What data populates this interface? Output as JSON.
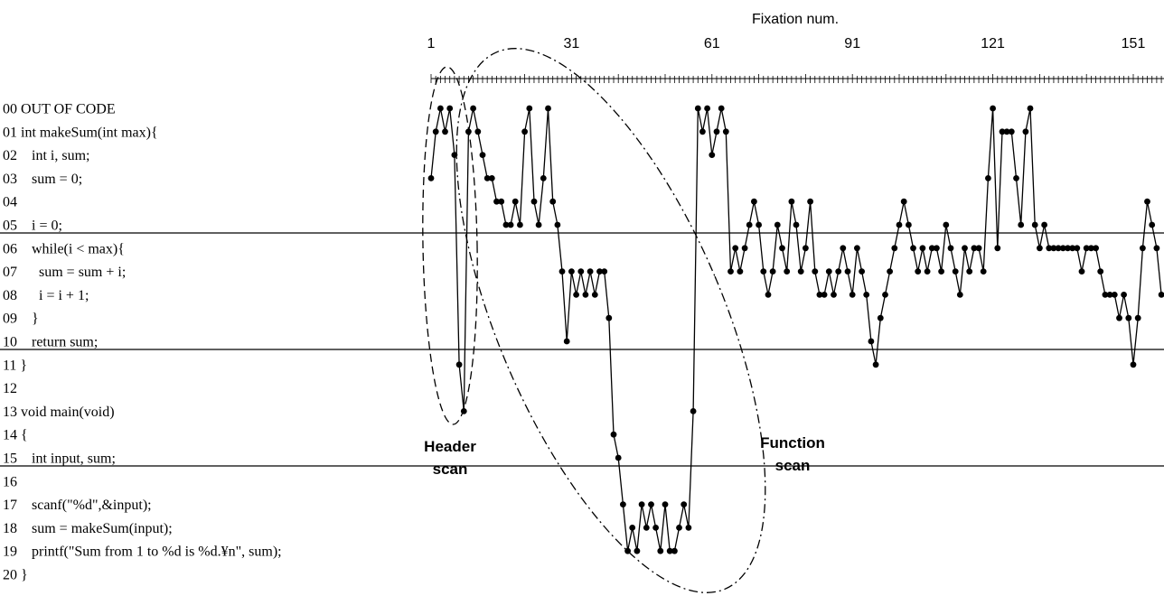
{
  "chart_data": {
    "type": "line",
    "xlabel": "Fixation num.",
    "x_tick_labels": [
      "1",
      "31",
      "61",
      "91",
      "121",
      "151"
    ],
    "x_tick_values": [
      1,
      31,
      61,
      91,
      121,
      151
    ],
    "y_axis_inverted": true,
    "code_lines": [
      "00 OUT OF CODE",
      "01 int makeSum(int max){",
      "02    int i, sum;",
      "03    sum = 0;",
      "04",
      "05    i = 0;",
      "06    while(i < max){",
      "07      sum = sum + i;",
      "08      i = i + 1;",
      "09    }",
      "10    return sum;",
      "11 }",
      "12",
      "13 void main(void)",
      "14 {",
      "15    int input, sum;",
      "16",
      "17    scanf(\"%d\",&input);",
      "18    sum = makeSum(input);",
      "19    printf(\"Sum from 1 to %d is %d.¥n\", sum);",
      "20 }"
    ],
    "block_separators_after_line": [
      5,
      10,
      15
    ],
    "series": [
      {
        "values": [
          3,
          1,
          0,
          1,
          0,
          2,
          11,
          13,
          1,
          0,
          1,
          2,
          3,
          3,
          4,
          4,
          5,
          5,
          4,
          5,
          1,
          0,
          4,
          5,
          3,
          0,
          4,
          5,
          7,
          10,
          7,
          8,
          7,
          8,
          7,
          8,
          7,
          7,
          9,
          14,
          15,
          17,
          19,
          18,
          19,
          17,
          18,
          17,
          18,
          19,
          17,
          19,
          19,
          18,
          17,
          18,
          13,
          0,
          1,
          0,
          2,
          1,
          0,
          1,
          7,
          6,
          7,
          6,
          5,
          4,
          5,
          7,
          8,
          7,
          5,
          6,
          7,
          4,
          5,
          7,
          6,
          4,
          7,
          8,
          8,
          7,
          8,
          7,
          6,
          7,
          8,
          6,
          7,
          8,
          10,
          11,
          9,
          8,
          7,
          6,
          5,
          4,
          5,
          6,
          7,
          6,
          7,
          6,
          6,
          7,
          5,
          6,
          7,
          8,
          6,
          7,
          6,
          6,
          7,
          3,
          0,
          6,
          1,
          1,
          1,
          3,
          5,
          1,
          0,
          5,
          6,
          5,
          6,
          6,
          6,
          6,
          6,
          6,
          6,
          7,
          6,
          6,
          6,
          7,
          8,
          8,
          8,
          9,
          8,
          9,
          11,
          9,
          6,
          4,
          5,
          6,
          8
        ],
        "rel_values": [
          null
        ]
      }
    ],
    "annotations": [
      {
        "text": "Header",
        "text2": "scan",
        "target": "header"
      },
      {
        "text": "Function",
        "text2": "scan",
        "target": "function"
      }
    ]
  }
}
